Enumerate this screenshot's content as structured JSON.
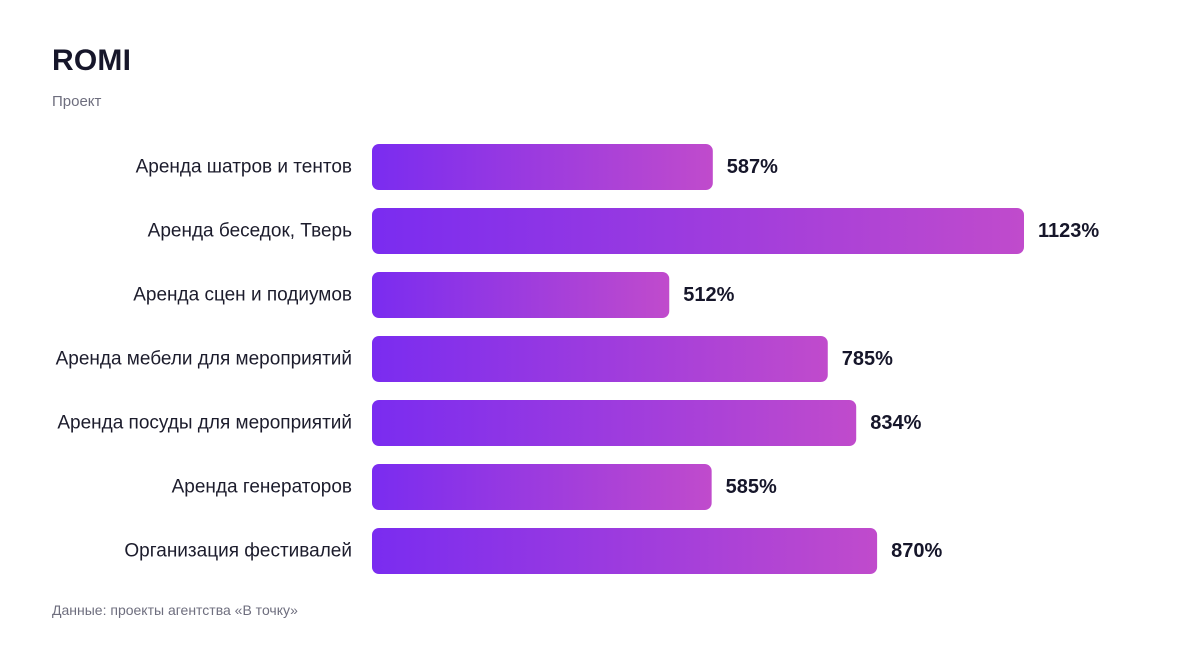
{
  "title": "ROMI",
  "subtitle": "Проект",
  "source": "Данные: проекты агентства «В точку»",
  "colors": {
    "bar_start": "#7a2cf0",
    "bar_end": "#c04bcc",
    "text": "#1c1c2c",
    "muted": "#6e6e7e"
  },
  "chart_data": {
    "type": "bar",
    "orientation": "horizontal",
    "title": "ROMI",
    "subtitle": "Проект",
    "categories": [
      "Аренда шатров и тентов",
      "Аренда беседок, Тверь",
      "Аренда сцен и подиумов",
      "Аренда мебели для мероприятий",
      "Аренда посуды для мероприятий",
      "Аренда генераторов",
      "Организация фестивалей"
    ],
    "values": [
      587,
      1123,
      512,
      785,
      834,
      585,
      870
    ],
    "value_labels": [
      "587%",
      "1123%",
      "512%",
      "785%",
      "834%",
      "585%",
      "870%"
    ],
    "unit": "%",
    "xlim": [
      0,
      1123
    ],
    "grid": false,
    "legend": "none"
  }
}
